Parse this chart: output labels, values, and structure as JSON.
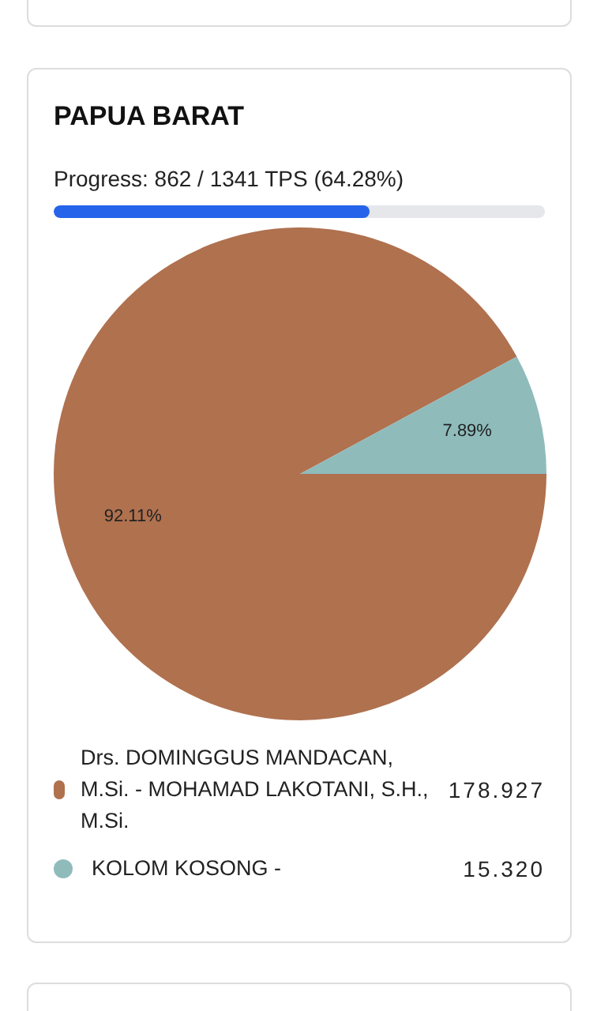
{
  "chart_data": {
    "type": "pie",
    "title": "PAPUA BARAT",
    "subtitle": "Progress: 862 / 1341 TPS (64.28%)",
    "categories": [
      "Drs. DOMINGGUS MANDACAN, M.Si. - MOHAMAD LAKOTANI, S.H., M.Si.",
      "KOLOM KOSONG -"
    ],
    "values": [
      92.11,
      7.89
    ],
    "annotations": [
      "178.927",
      "15.320"
    ],
    "colors": [
      "#b0714f",
      "#8fbbbb"
    ],
    "value_labels": [
      "92.11%",
      "7.89%"
    ],
    "legend": "bottom"
  }
}
